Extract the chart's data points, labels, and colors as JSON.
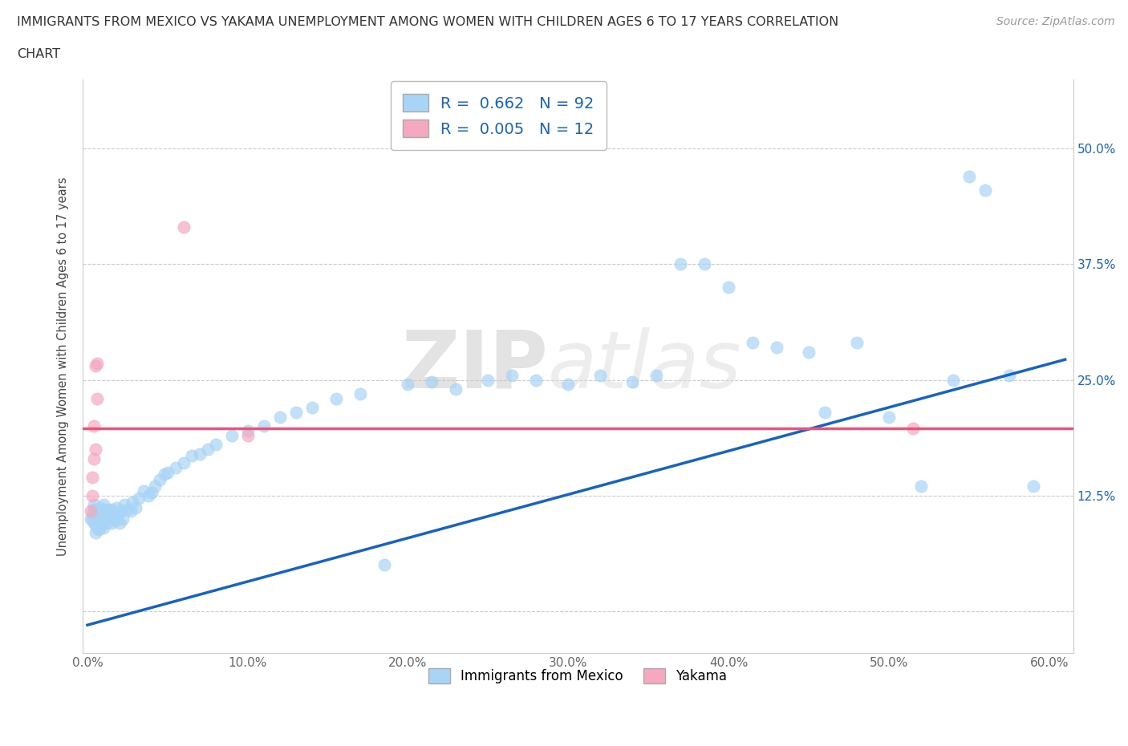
{
  "title_line1": "IMMIGRANTS FROM MEXICO VS YAKAMA UNEMPLOYMENT AMONG WOMEN WITH CHILDREN AGES 6 TO 17 YEARS CORRELATION",
  "title_line2": "CHART",
  "source": "Source: ZipAtlas.com",
  "ylabel": "Unemployment Among Women with Children Ages 6 to 17 years",
  "xlim": [
    -0.003,
    0.615
  ],
  "ylim": [
    -0.045,
    0.575
  ],
  "xtick_vals": [
    0.0,
    0.1,
    0.2,
    0.3,
    0.4,
    0.5,
    0.6
  ],
  "xticklabels": [
    "0.0%",
    "10.0%",
    "20.0%",
    "30.0%",
    "40.0%",
    "50.0%",
    "60.0%"
  ],
  "ytick_vals": [
    0.0,
    0.125,
    0.25,
    0.375,
    0.5
  ],
  "yticklabels": [
    "",
    "12.5%",
    "25.0%",
    "37.5%",
    "50.0%"
  ],
  "legend_R_label1": "R =  0.662   N = 92",
  "legend_R_label2": "R =  0.005   N = 12",
  "legend_label1": "Immigrants from Mexico",
  "legend_label2": "Yakama",
  "blue_scatter_color": "#A8D4F5",
  "pink_scatter_color": "#F5A8C0",
  "blue_line_color": "#1565C0",
  "pink_line_color": "#E8547A",
  "R_blue_str": "0.662",
  "N_blue_str": "92",
  "R_pink_str": "0.005",
  "N_pink_str": "12",
  "blue_line_x0": 0.0,
  "blue_line_x1": 0.61,
  "blue_line_y0": -0.015,
  "blue_line_y1": 0.272,
  "pink_line_y": 0.198,
  "watermark_zip": "ZIP",
  "watermark_atlas": "atlas",
  "blue_x": [
    0.002,
    0.003,
    0.003,
    0.004,
    0.004,
    0.004,
    0.005,
    0.005,
    0.005,
    0.005,
    0.006,
    0.006,
    0.006,
    0.007,
    0.007,
    0.007,
    0.008,
    0.008,
    0.008,
    0.009,
    0.009,
    0.01,
    0.01,
    0.01,
    0.011,
    0.011,
    0.012,
    0.012,
    0.013,
    0.014,
    0.015,
    0.015,
    0.016,
    0.017,
    0.018,
    0.019,
    0.02,
    0.021,
    0.022,
    0.023,
    0.025,
    0.027,
    0.028,
    0.03,
    0.032,
    0.035,
    0.038,
    0.04,
    0.042,
    0.045,
    0.048,
    0.05,
    0.055,
    0.06,
    0.065,
    0.07,
    0.075,
    0.08,
    0.09,
    0.1,
    0.11,
    0.12,
    0.13,
    0.14,
    0.155,
    0.17,
    0.185,
    0.2,
    0.215,
    0.23,
    0.25,
    0.265,
    0.28,
    0.3,
    0.32,
    0.34,
    0.355,
    0.37,
    0.385,
    0.4,
    0.415,
    0.43,
    0.45,
    0.46,
    0.48,
    0.5,
    0.52,
    0.54,
    0.55,
    0.56,
    0.575,
    0.59
  ],
  "blue_y": [
    0.1,
    0.1,
    0.105,
    0.095,
    0.11,
    0.115,
    0.085,
    0.095,
    0.1,
    0.11,
    0.09,
    0.095,
    0.108,
    0.088,
    0.098,
    0.108,
    0.092,
    0.1,
    0.112,
    0.095,
    0.105,
    0.09,
    0.1,
    0.115,
    0.098,
    0.108,
    0.095,
    0.11,
    0.1,
    0.108,
    0.095,
    0.11,
    0.1,
    0.098,
    0.112,
    0.105,
    0.095,
    0.108,
    0.1,
    0.115,
    0.11,
    0.108,
    0.118,
    0.112,
    0.122,
    0.13,
    0.125,
    0.128,
    0.135,
    0.142,
    0.148,
    0.15,
    0.155,
    0.16,
    0.168,
    0.17,
    0.175,
    0.18,
    0.19,
    0.195,
    0.2,
    0.21,
    0.215,
    0.22,
    0.23,
    0.235,
    0.05,
    0.245,
    0.248,
    0.24,
    0.25,
    0.255,
    0.25,
    0.245,
    0.255,
    0.248,
    0.255,
    0.375,
    0.375,
    0.35,
    0.29,
    0.285,
    0.28,
    0.215,
    0.29,
    0.21,
    0.135,
    0.25,
    0.47,
    0.455,
    0.255,
    0.135
  ],
  "pink_x": [
    0.002,
    0.003,
    0.003,
    0.004,
    0.004,
    0.005,
    0.005,
    0.006,
    0.006,
    0.06,
    0.1,
    0.515
  ],
  "pink_y": [
    0.108,
    0.125,
    0.145,
    0.165,
    0.2,
    0.265,
    0.175,
    0.268,
    0.23,
    0.415,
    0.19,
    0.198
  ]
}
